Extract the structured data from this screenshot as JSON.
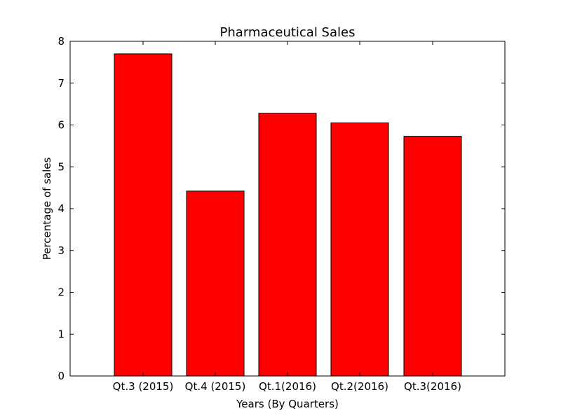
{
  "chart_data": {
    "type": "bar",
    "title": "Pharmaceutical Sales",
    "xlabel": "Years (By Quarters)",
    "ylabel": "Percentage of sales",
    "categories": [
      "Qt.3 (2015)",
      "Qt.4 (2015)",
      "Qt.1(2016)",
      "Qt.2(2016)",
      "Qt.3(2016)"
    ],
    "values": [
      7.7,
      4.42,
      6.28,
      6.05,
      5.73
    ],
    "ylim": [
      0,
      8
    ],
    "yticks": [
      "0",
      "1",
      "2",
      "3",
      "4",
      "5",
      "6",
      "7",
      "8"
    ],
    "bar_color": "#ff0000",
    "edge_color": "#000000",
    "grid": false,
    "legend": "none"
  }
}
